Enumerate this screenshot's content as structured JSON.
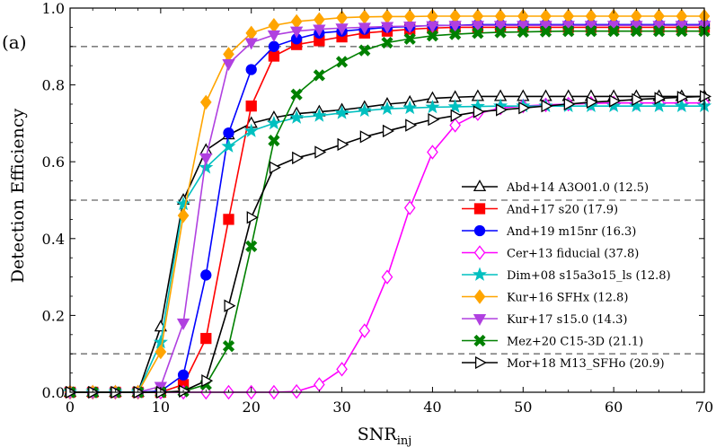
{
  "panel_label": "(a)",
  "chart_data": {
    "type": "line",
    "xlabel": "SNR",
    "xlabel_sub": "inj",
    "ylabel": "Detection Efficiency",
    "xlim": [
      0,
      70
    ],
    "ylim": [
      0,
      1.0
    ],
    "xticks": [
      0,
      10,
      20,
      30,
      40,
      50,
      60,
      70
    ],
    "yticks": [
      0.0,
      0.2,
      0.4,
      0.6,
      0.8,
      1.0
    ],
    "hlines": [
      0.1,
      0.5,
      0.9
    ],
    "grid": false,
    "legend_position": "lower-right",
    "series": [
      {
        "name": "Abd+14 A3O01.0 (12.5)",
        "color": "#000000",
        "marker": "triangle-up",
        "filled": false,
        "x": [
          0,
          2.5,
          5,
          7.5,
          10,
          12.5,
          15,
          17.5,
          20,
          22.5,
          25,
          27.5,
          30,
          32.5,
          35,
          37.5,
          40,
          42.5,
          45,
          47.5,
          50,
          52.5,
          55,
          57.5,
          60,
          62.5,
          65,
          67.5,
          70
        ],
        "y": [
          0,
          0,
          0,
          0,
          0.17,
          0.5,
          0.63,
          0.67,
          0.7,
          0.715,
          0.725,
          0.73,
          0.735,
          0.742,
          0.75,
          0.755,
          0.765,
          0.768,
          0.77,
          0.77,
          0.77,
          0.77,
          0.77,
          0.77,
          0.77,
          0.77,
          0.77,
          0.77,
          0.77
        ]
      },
      {
        "name": "And+17 s20 (17.9)",
        "color": "#ff0000",
        "marker": "square",
        "filled": true,
        "x": [
          0,
          2.5,
          5,
          7.5,
          10,
          12.5,
          15,
          17.5,
          20,
          22.5,
          25,
          27.5,
          30,
          32.5,
          35,
          37.5,
          40,
          42.5,
          45,
          47.5,
          50,
          52.5,
          55,
          57.5,
          60,
          62.5,
          65,
          67.5,
          70
        ],
        "y": [
          0,
          0,
          0,
          0,
          0,
          0.02,
          0.14,
          0.45,
          0.745,
          0.875,
          0.905,
          0.915,
          0.925,
          0.935,
          0.94,
          0.945,
          0.948,
          0.95,
          0.95,
          0.95,
          0.95,
          0.95,
          0.95,
          0.95,
          0.95,
          0.95,
          0.95,
          0.95,
          0.95
        ]
      },
      {
        "name": "And+19 m15nr (16.3)",
        "color": "#0000ff",
        "marker": "circle",
        "filled": true,
        "x": [
          0,
          2.5,
          5,
          7.5,
          10,
          12.5,
          15,
          17.5,
          20,
          22.5,
          25,
          27.5,
          30,
          32.5,
          35,
          37.5,
          40,
          42.5,
          45,
          47.5,
          50,
          52.5,
          55,
          57.5,
          60,
          62.5,
          65,
          67.5,
          70
        ],
        "y": [
          0,
          0,
          0,
          0,
          0.003,
          0.045,
          0.305,
          0.675,
          0.84,
          0.9,
          0.92,
          0.935,
          0.94,
          0.945,
          0.95,
          0.952,
          0.955,
          0.955,
          0.957,
          0.957,
          0.957,
          0.957,
          0.957,
          0.957,
          0.957,
          0.957,
          0.957,
          0.957,
          0.957
        ]
      },
      {
        "name": "Cer+13 fiducial (37.8)",
        "color": "#ff00ff",
        "marker": "diamond",
        "filled": false,
        "x": [
          0,
          2.5,
          5,
          7.5,
          10,
          12.5,
          15,
          17.5,
          20,
          22.5,
          25,
          27.5,
          30,
          32.5,
          35,
          37.5,
          40,
          42.5,
          45,
          47.5,
          50,
          52.5,
          55,
          57.5,
          60,
          62.5,
          65,
          67.5,
          70
        ],
        "y": [
          0,
          0,
          0,
          0,
          0,
          0,
          0,
          0,
          0,
          0,
          0.002,
          0.02,
          0.06,
          0.16,
          0.3,
          0.48,
          0.625,
          0.695,
          0.725,
          0.74,
          0.745,
          0.748,
          0.75,
          0.752,
          0.753,
          0.753,
          0.753,
          0.753,
          0.753
        ]
      },
      {
        "name": "Dim+08 s15a3o15_ls (12.8)",
        "color": "#00c0c0",
        "marker": "star",
        "filled": true,
        "x": [
          0,
          2.5,
          5,
          7.5,
          10,
          12.5,
          15,
          17.5,
          20,
          22.5,
          25,
          27.5,
          30,
          32.5,
          35,
          37.5,
          40,
          42.5,
          45,
          47.5,
          50,
          52.5,
          55,
          57.5,
          60,
          62.5,
          65,
          67.5,
          70
        ],
        "y": [
          0,
          0,
          0,
          0,
          0.13,
          0.49,
          0.585,
          0.64,
          0.68,
          0.7,
          0.715,
          0.72,
          0.727,
          0.733,
          0.738,
          0.74,
          0.742,
          0.743,
          0.744,
          0.745,
          0.745,
          0.745,
          0.745,
          0.745,
          0.745,
          0.745,
          0.745,
          0.745,
          0.745
        ]
      },
      {
        "name": "Kur+16 SFHx (12.8)",
        "color": "#ffa500",
        "marker": "diamond",
        "filled": true,
        "x": [
          0,
          2.5,
          5,
          7.5,
          10,
          12.5,
          15,
          17.5,
          20,
          22.5,
          25,
          27.5,
          30,
          32.5,
          35,
          37.5,
          40,
          42.5,
          45,
          47.5,
          50,
          52.5,
          55,
          57.5,
          60,
          62.5,
          65,
          67.5,
          70
        ],
        "y": [
          0,
          0,
          0,
          0,
          0.105,
          0.46,
          0.755,
          0.88,
          0.935,
          0.955,
          0.965,
          0.97,
          0.975,
          0.977,
          0.978,
          0.978,
          0.979,
          0.979,
          0.979,
          0.979,
          0.979,
          0.979,
          0.979,
          0.979,
          0.979,
          0.979,
          0.979,
          0.979,
          0.979
        ]
      },
      {
        "name": "Kur+17 s15.0 (14.3)",
        "color": "#b040e0",
        "marker": "triangle-down",
        "filled": true,
        "x": [
          0,
          2.5,
          5,
          7.5,
          10,
          12.5,
          15,
          17.5,
          20,
          22.5,
          25,
          27.5,
          30,
          32.5,
          35,
          37.5,
          40,
          42.5,
          45,
          47.5,
          50,
          52.5,
          55,
          57.5,
          60,
          62.5,
          65,
          67.5,
          70
        ],
        "y": [
          0,
          0,
          0,
          0,
          0.015,
          0.18,
          0.61,
          0.855,
          0.91,
          0.93,
          0.94,
          0.945,
          0.948,
          0.95,
          0.952,
          0.953,
          0.954,
          0.955,
          0.955,
          0.955,
          0.955,
          0.955,
          0.955,
          0.955,
          0.955,
          0.955,
          0.955,
          0.955,
          0.955
        ]
      },
      {
        "name": "Mez+20 C15-3D (21.1)",
        "color": "#008000",
        "marker": "x",
        "filled": true,
        "x": [
          0,
          2.5,
          5,
          7.5,
          10,
          12.5,
          15,
          17.5,
          20,
          22.5,
          25,
          27.5,
          30,
          32.5,
          35,
          37.5,
          40,
          42.5,
          45,
          47.5,
          50,
          52.5,
          55,
          57.5,
          60,
          62.5,
          65,
          67.5,
          70
        ],
        "y": [
          0,
          0,
          0,
          0,
          0,
          0.002,
          0.02,
          0.12,
          0.38,
          0.655,
          0.775,
          0.825,
          0.86,
          0.89,
          0.91,
          0.92,
          0.928,
          0.932,
          0.935,
          0.937,
          0.938,
          0.939,
          0.94,
          0.94,
          0.94,
          0.94,
          0.94,
          0.94,
          0.94
        ]
      },
      {
        "name": "Mor+18 M13_SFHo (20.9)",
        "color": "#000000",
        "marker": "triangle-right",
        "filled": false,
        "x": [
          0,
          2.5,
          5,
          7.5,
          10,
          12.5,
          15,
          17.5,
          20,
          22.5,
          25,
          27.5,
          30,
          32.5,
          35,
          37.5,
          40,
          42.5,
          45,
          47.5,
          50,
          52.5,
          55,
          57.5,
          60,
          62.5,
          65,
          67.5,
          70
        ],
        "y": [
          0,
          0,
          0,
          0,
          0,
          0.003,
          0.03,
          0.225,
          0.455,
          0.585,
          0.61,
          0.625,
          0.645,
          0.665,
          0.68,
          0.695,
          0.71,
          0.72,
          0.73,
          0.735,
          0.74,
          0.745,
          0.75,
          0.755,
          0.758,
          0.762,
          0.765,
          0.768,
          0.77
        ]
      }
    ]
  }
}
